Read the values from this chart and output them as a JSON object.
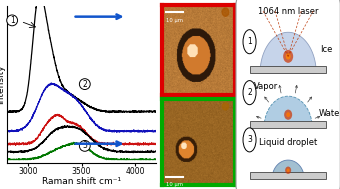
{
  "fig_width": 3.4,
  "fig_height": 1.89,
  "dpi": 100,
  "bg_color": "#ffffff",
  "raman": {
    "x_min": 2800,
    "x_max": 4200,
    "xlabel": "Raman shift cm⁻¹",
    "ylabel": "Intensity",
    "tick_label_size": 5.5,
    "axis_label_size": 6.5,
    "x_ticks": [
      3000,
      3500,
      4000
    ],
    "curve1_color": "#000000",
    "curve2_color": "#1111bb",
    "curve3_color": "#cc1111",
    "curve4_color": "#000000",
    "curve5_color": "#007700"
  },
  "micro_img1": {
    "border_color": "#dd0000",
    "bg_color_r": 0.72,
    "bg_color_g": 0.48,
    "bg_color_b": 0.22,
    "scale_bar_text": "10 μm"
  },
  "micro_img2": {
    "border_color": "#00aa00",
    "bg_color_r": 0.6,
    "bg_color_g": 0.4,
    "bg_color_b": 0.14,
    "scale_bar_text": "10 μm"
  },
  "schematic": {
    "title": "1064 nm laser",
    "title_size": 6.0,
    "label_size": 6.0,
    "ice_color": "#c0d0e8",
    "water_color": "#90b8d0",
    "laser_color": "#bb3300",
    "circled_num_size": 5.5
  }
}
